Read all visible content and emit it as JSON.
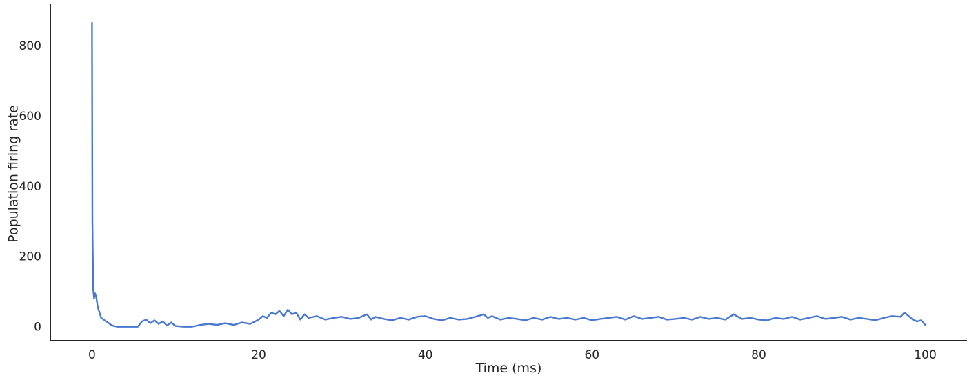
{
  "chart_data": {
    "type": "line",
    "xlabel": "Time (ms)",
    "ylabel": "Population firing rate",
    "xlim": [
      -5,
      105
    ],
    "ylim": [
      -40,
      910
    ],
    "xticks": [
      0,
      20,
      40,
      60,
      80,
      100
    ],
    "yticks": [
      0,
      200,
      400,
      600,
      800
    ],
    "xtick_labels": [
      "0",
      "20",
      "40",
      "60",
      "80",
      "100"
    ],
    "ytick_labels": [
      "0",
      "200",
      "400",
      "600",
      "800"
    ],
    "grid": false,
    "legend": "none",
    "series": [
      {
        "color": "#4878cf",
        "x": [
          0,
          0.05,
          0.15,
          0.25,
          0.35,
          0.5,
          0.7,
          0.9,
          1.1,
          1.4,
          1.7,
          2.0,
          2.3,
          2.6,
          3.0,
          3.5,
          4.0,
          4.5,
          5.0,
          5.5,
          6.0,
          6.5,
          7.0,
          7.5,
          8.0,
          8.5,
          9.0,
          9.5,
          10.0,
          11.0,
          12.0,
          13.0,
          14.0,
          15.0,
          16.0,
          17.0,
          18.0,
          19.0,
          20.0,
          20.5,
          21.0,
          21.5,
          22.0,
          22.5,
          23.0,
          23.5,
          24.0,
          24.5,
          25.0,
          25.5,
          26.0,
          27.0,
          28.0,
          29.0,
          30.0,
          31.0,
          32.0,
          33.0,
          33.5,
          34.0,
          35.0,
          36.0,
          37.0,
          38.0,
          39.0,
          40.0,
          41.0,
          42.0,
          43.0,
          44.0,
          45.0,
          46.0,
          47.0,
          47.5,
          48.0,
          49.0,
          50.0,
          51.0,
          52.0,
          53.0,
          54.0,
          55.0,
          56.0,
          57.0,
          58.0,
          59.0,
          60.0,
          61.0,
          62.0,
          63.0,
          64.0,
          65.0,
          66.0,
          67.0,
          68.0,
          69.0,
          70.0,
          71.0,
          72.0,
          73.0,
          74.0,
          75.0,
          76.0,
          77.0,
          78.0,
          79.0,
          80.0,
          81.0,
          82.0,
          83.0,
          84.0,
          85.0,
          86.0,
          87.0,
          88.0,
          89.0,
          90.0,
          91.0,
          92.0,
          93.0,
          94.0,
          95.0,
          96.0,
          97.0,
          97.5,
          98.0,
          98.5,
          99.0,
          99.5,
          100.0
        ],
        "values": [
          865,
          300,
          105,
          80,
          95,
          85,
          55,
          40,
          25,
          20,
          15,
          10,
          5,
          2,
          0,
          0,
          0,
          0,
          0,
          0,
          15,
          20,
          10,
          18,
          8,
          15,
          3,
          12,
          2,
          0,
          0,
          5,
          8,
          5,
          10,
          5,
          12,
          8,
          20,
          30,
          25,
          40,
          35,
          45,
          30,
          48,
          35,
          40,
          20,
          35,
          25,
          30,
          20,
          25,
          28,
          22,
          25,
          35,
          20,
          28,
          22,
          18,
          25,
          20,
          28,
          30,
          22,
          18,
          25,
          20,
          22,
          28,
          35,
          25,
          30,
          20,
          25,
          22,
          18,
          25,
          20,
          28,
          22,
          25,
          20,
          25,
          18,
          22,
          25,
          28,
          20,
          30,
          22,
          25,
          28,
          20,
          22,
          25,
          20,
          28,
          22,
          25,
          20,
          35,
          22,
          25,
          20,
          18,
          25,
          22,
          28,
          20,
          25,
          30,
          22,
          25,
          28,
          20,
          25,
          22,
          18,
          25,
          30,
          28,
          40,
          30,
          20,
          15,
          18,
          5
        ]
      }
    ]
  }
}
